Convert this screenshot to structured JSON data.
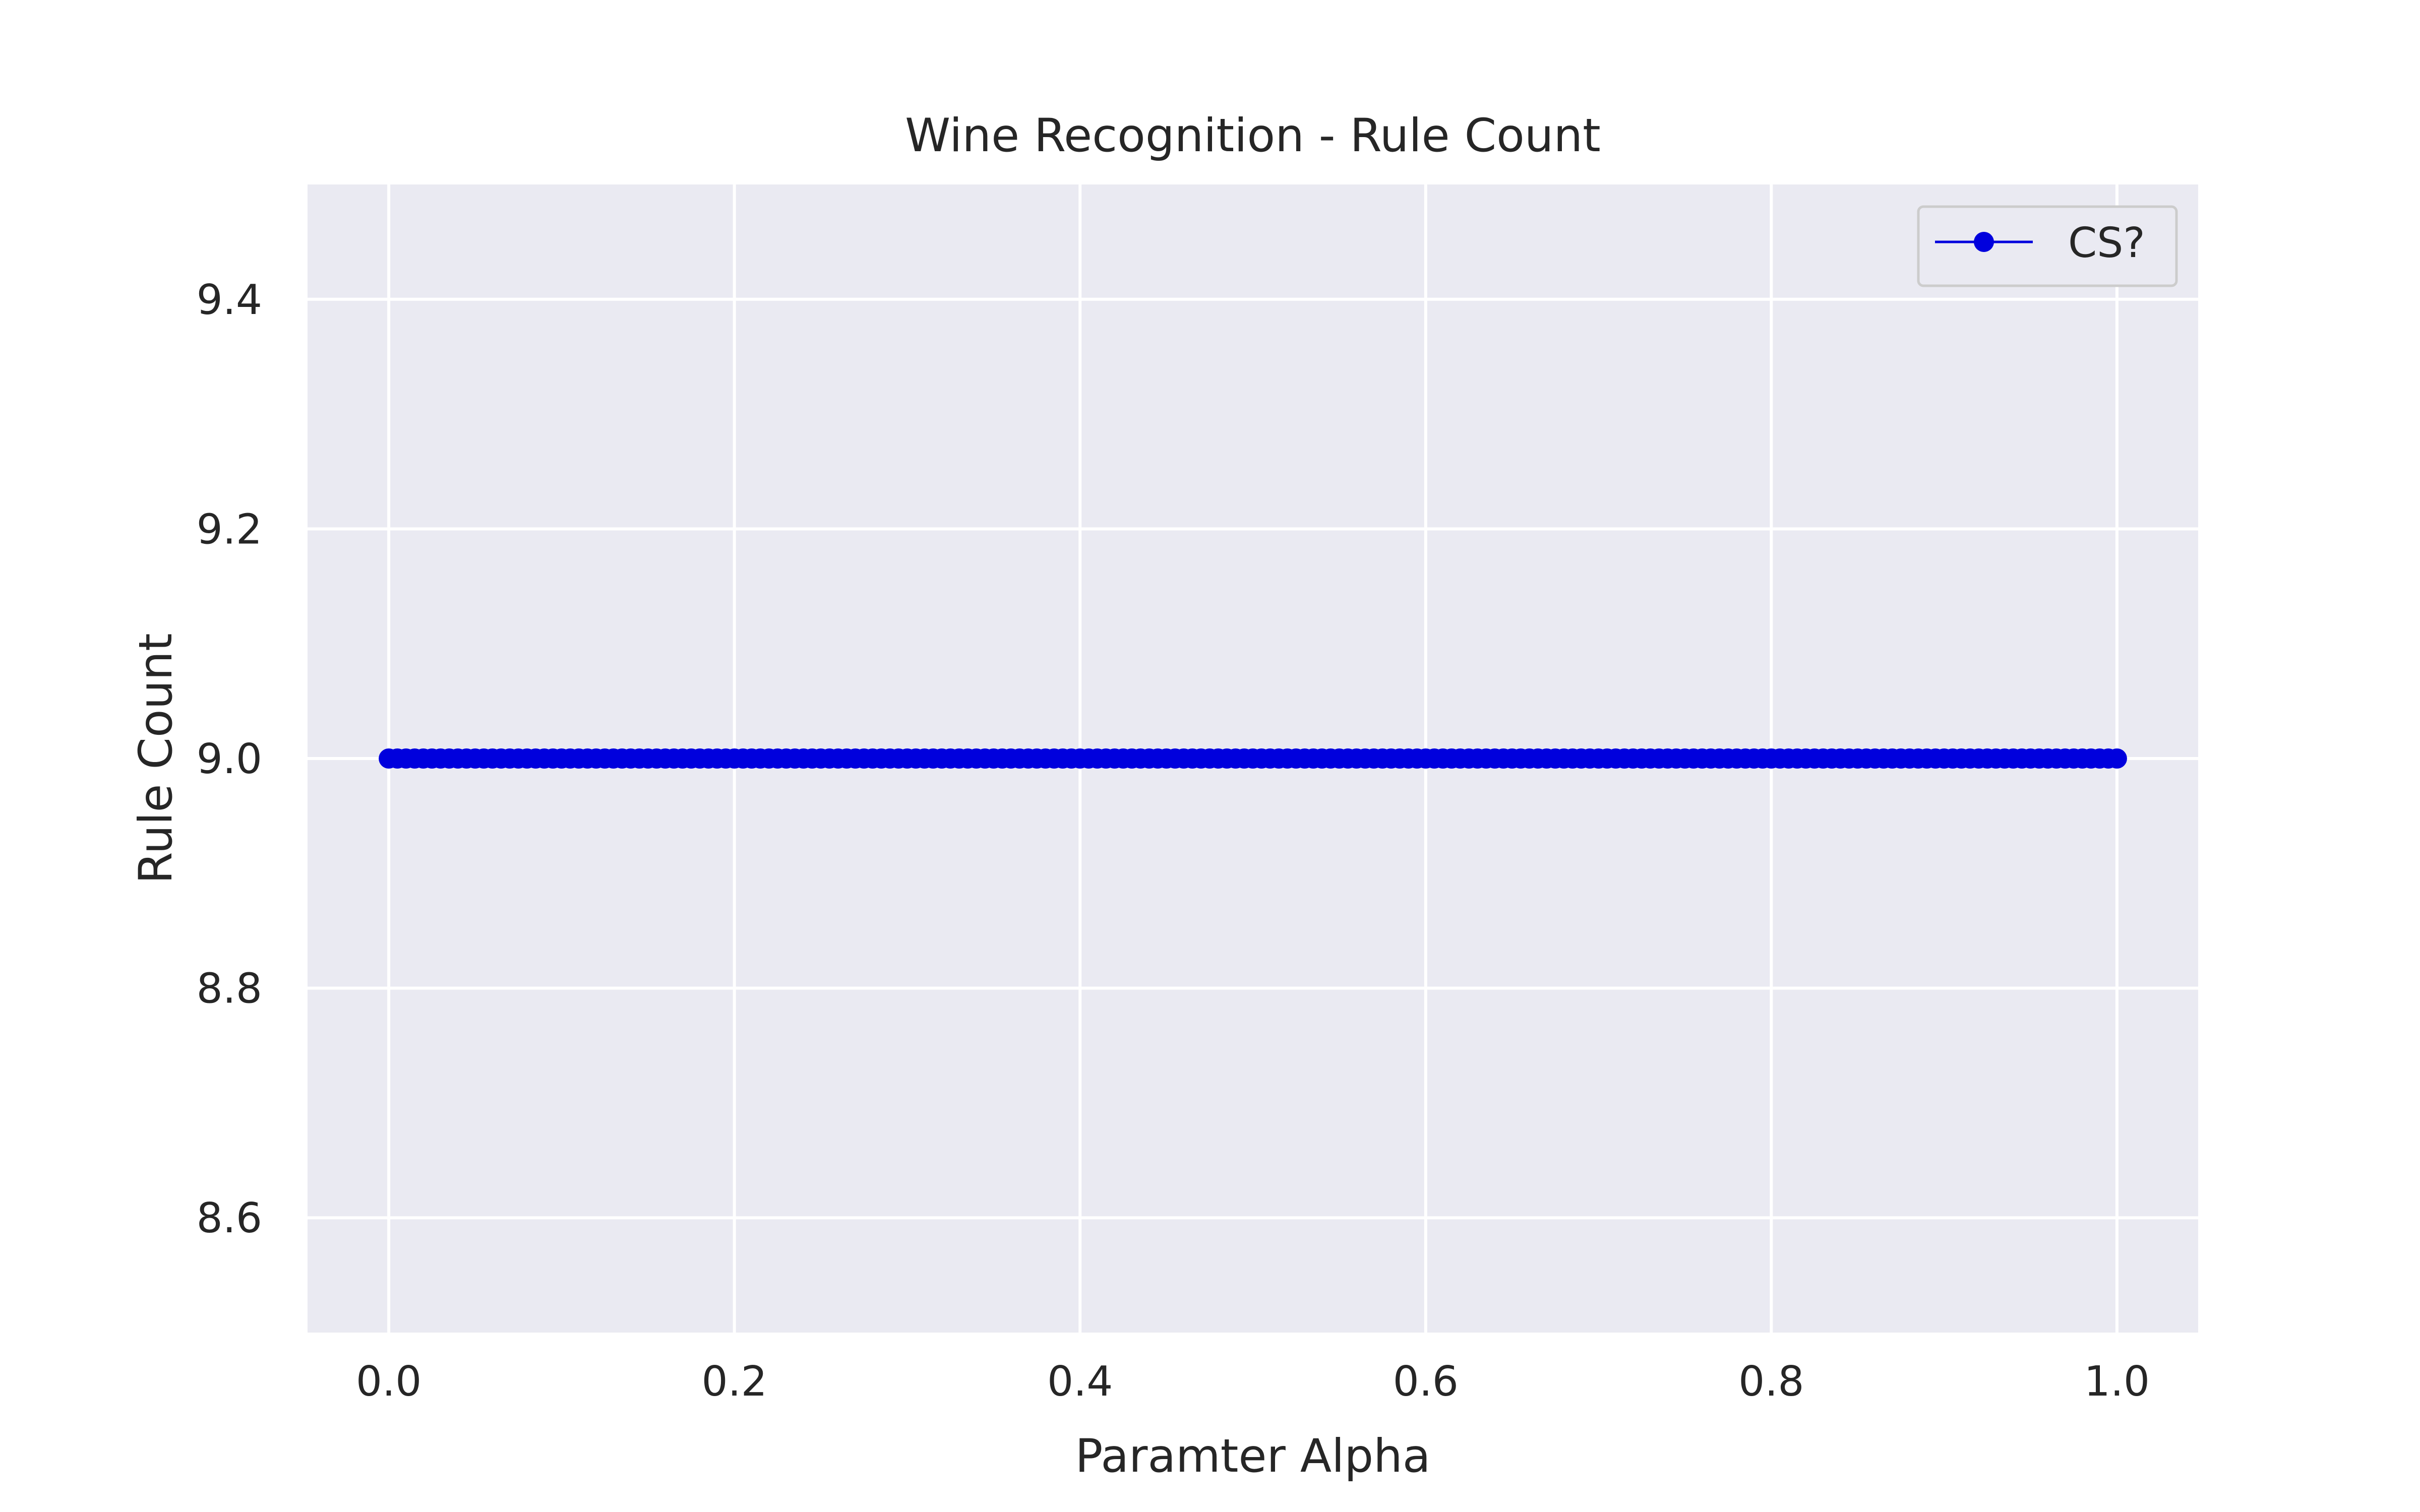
{
  "chart_data": {
    "type": "line",
    "title": "Wine Recognition - Rule Count",
    "xlabel": "Paramter Alpha",
    "ylabel": "Rule Count",
    "xlim": [
      -0.047,
      1.047
    ],
    "ylim": [
      8.5,
      9.5
    ],
    "xticks": [
      0.0,
      0.2,
      0.4,
      0.6,
      0.8,
      1.0
    ],
    "xtick_labels": [
      "0.0",
      "0.2",
      "0.4",
      "0.6",
      "0.8",
      "1.0"
    ],
    "yticks": [
      8.6,
      8.8,
      9.0,
      9.2,
      9.4
    ],
    "ytick_labels": [
      "8.6",
      "8.8",
      "9.0",
      "9.2",
      "9.4"
    ],
    "grid": true,
    "background": "#eaeaf2",
    "grid_color": "#ffffff",
    "legend_position": "top-right",
    "series": [
      {
        "name": "CS?",
        "color": "#0000dd",
        "marker": "circle",
        "x_start": 0.0,
        "x_end": 1.0,
        "point_count": 201,
        "constant_y": 9.0
      }
    ]
  }
}
